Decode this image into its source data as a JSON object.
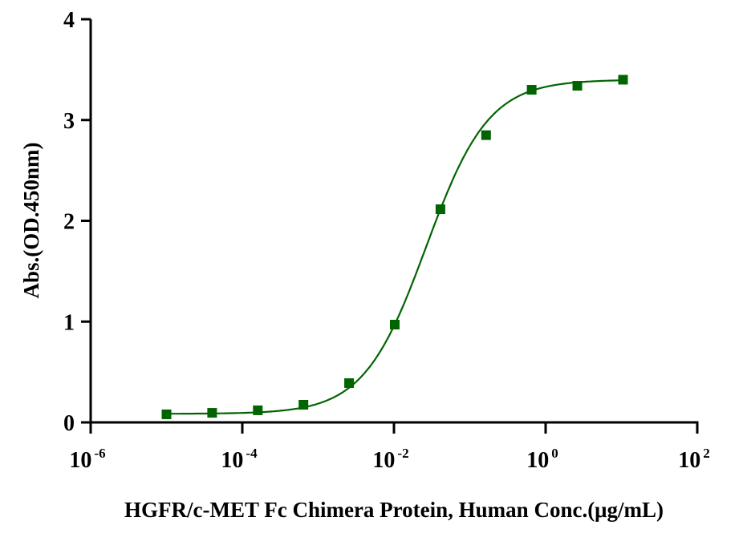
{
  "chart_data": {
    "type": "scatter",
    "title": "",
    "xlabel": "HGFR/c-MET Fc Chimera Protein, Human Conc.(μg/mL)",
    "ylabel": "Abs.(OD.450nm)",
    "xscale": "log",
    "xlim": [
      1e-06,
      100
    ],
    "ylim": [
      0,
      4
    ],
    "x_ticks": [
      {
        "value": 1e-06,
        "base": "10",
        "exp": "-6"
      },
      {
        "value": 0.0001,
        "base": "10",
        "exp": "-4"
      },
      {
        "value": 0.01,
        "base": "10",
        "exp": "-2"
      },
      {
        "value": 1,
        "base": "10",
        "exp": "0"
      },
      {
        "value": 100,
        "base": "10",
        "exp": "2"
      }
    ],
    "y_ticks": [
      "0",
      "1",
      "2",
      "3",
      "4"
    ],
    "grid": false,
    "series": [
      {
        "name": "HGFR/c-MET Fc Chimera Protein, Human",
        "color": "#006400",
        "marker": "square",
        "x": [
          1e-05,
          4e-05,
          0.00016,
          0.00064,
          0.00256,
          0.01024,
          0.041,
          0.164,
          0.655,
          2.62,
          10.49
        ],
        "y": [
          0.08,
          0.095,
          0.12,
          0.175,
          0.39,
          0.97,
          2.115,
          2.85,
          3.3,
          3.34,
          3.4
        ],
        "fit": {
          "model": "4PL",
          "bottom": 0.085,
          "top": 3.4,
          "ec50": 0.0266,
          "hill": 1.055
        }
      }
    ]
  }
}
